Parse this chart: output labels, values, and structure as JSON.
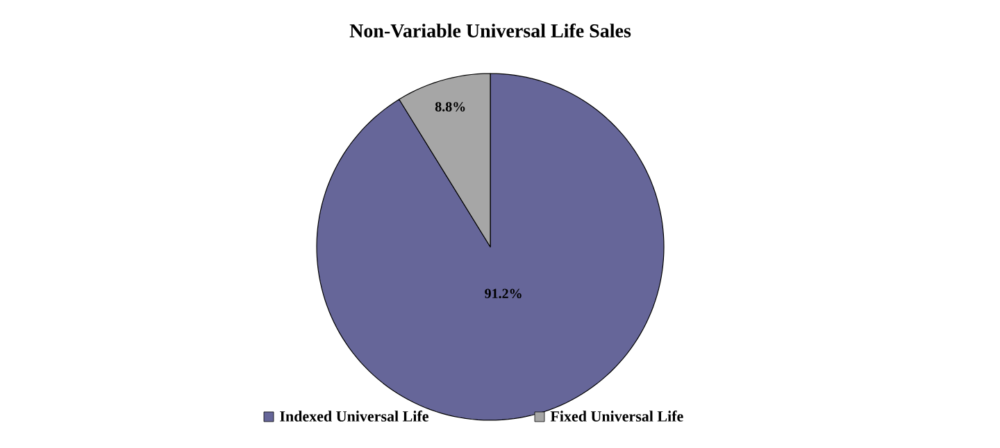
{
  "chart_data": {
    "type": "pie",
    "title": "Non-Variable Universal Life Sales",
    "categories": [
      "Indexed Universal Life",
      "Fixed Universal Life"
    ],
    "values": [
      91.2,
      8.8
    ],
    "colors": [
      "#666699",
      "#a6a6a6"
    ],
    "value_labels": [
      "91.2%",
      "8.8%"
    ],
    "legend": "bottom"
  }
}
